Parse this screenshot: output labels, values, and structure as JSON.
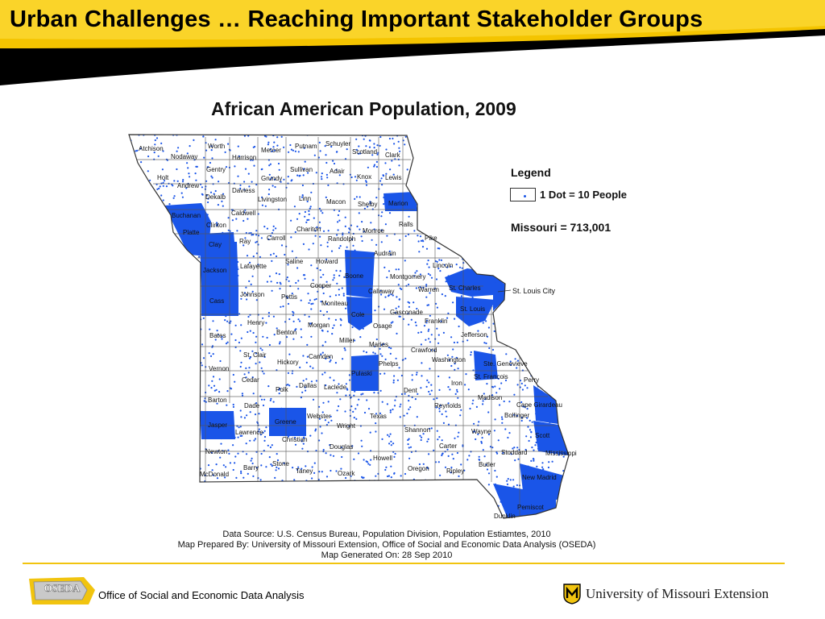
{
  "slide": {
    "title": "Urban Challenges … Reaching Important Stakeholder Groups"
  },
  "map": {
    "title": "African American Population, 2009",
    "legend_title": "Legend",
    "legend_entry": "1 Dot = 10 People",
    "total": "Missouri = 713,001",
    "st_louis_city": "St. Louis City",
    "dot_color": "#1a55e8",
    "counties": {
      "atchison": "Atchison",
      "nodaway": "Nodaway",
      "worth": "Worth",
      "harrison": "Harrison",
      "mercer": "Mercer",
      "putnam": "Putnam",
      "schuyler": "Schuyler",
      "scotland": "Scotland",
      "clark": "Clark",
      "holt": "Holt",
      "andrew": "Andrew",
      "gentry": "Gentry",
      "daviess": "Daviess",
      "grundy": "Grundy",
      "sullivan": "Sullivan",
      "adair": "Adair",
      "knox": "Knox",
      "lewis": "Lewis",
      "dekalb": "Dekalb",
      "livingston": "Livingston",
      "linn": "Linn",
      "macon": "Macon",
      "shelby": "Shelby",
      "marion": "Marion",
      "buchanan": "Buchanan",
      "clinton": "Clinton",
      "caldwell": "Caldwell",
      "ralls": "Ralls",
      "platte": "Platte",
      "clay": "Clay",
      "ray": "Ray",
      "carroll": "Carroll",
      "chariton": "Chariton",
      "randolph": "Randolph",
      "monroe": "Monroe",
      "pike": "Pike",
      "audrain": "Audrain",
      "lincoln": "Lincoln",
      "jackson": "Jackson",
      "lafayette": "Lafayette",
      "saline": "Saline",
      "howard": "Howard",
      "boone": "Boone",
      "montgomery": "Montgomery",
      "callaway": "Callaway",
      "warren": "Warren",
      "st_charles": "St. Charles",
      "cooper": "Cooper",
      "moniteau": "Moniteau",
      "cass": "Cass",
      "johnson": "Johnson",
      "pettis": "Pettis",
      "cole": "Cole",
      "gasconade": "Gasconade",
      "franklin": "Franklin",
      "st_louis": "St. Louis",
      "osage": "Osage",
      "henry": "Henry",
      "morgan": "Morgan",
      "benton": "Benton",
      "bates": "Bates",
      "miller": "Miller",
      "maries": "Maries",
      "jefferson": "Jefferson",
      "st_clair": "St. Clair",
      "camden": "Camden",
      "crawford": "Crawford",
      "hickory": "Hickory",
      "washington": "Washington",
      "ste_genevieve": "Ste. Genevieve",
      "vernon": "Vernon",
      "pulaski": "Pulaski",
      "phelps": "Phelps",
      "st_francois": "St. Francois",
      "perry": "Perry",
      "cedar": "Cedar",
      "polk": "Polk",
      "dallas": "Dallas",
      "laclede": "Laclede",
      "dent": "Dent",
      "iron": "Iron",
      "madison": "Madison",
      "barton": "Barton",
      "dade": "Dade",
      "reynolds": "Reynolds",
      "cape_girardeau": "Cape Girardeau",
      "bollinger": "Bollinger",
      "jasper": "Jasper",
      "greene": "Greene",
      "webster": "Webster",
      "wright": "Wright",
      "texas": "Texas",
      "shannon": "Shannon",
      "wayne": "Wayne",
      "scott": "Scott",
      "lawrence": "Lawrence",
      "christian": "Christian",
      "carter": "Carter",
      "douglas": "Douglas",
      "stoddard": "Stoddard",
      "mississippi": "Mississippi",
      "newton": "Newton",
      "howell": "Howell",
      "butler": "Butler",
      "barry": "Barry",
      "stone": "Stone",
      "taney": "Taney",
      "oregon": "Oregon",
      "ripley": "Ripley",
      "new_madrid": "New Madrid",
      "mcdonald": "McDonald",
      "ozark": "Ozark",
      "pemiscot": "Pemiscot",
      "dunklin": "Dunklin"
    }
  },
  "source": {
    "line1": "Data Source: U.S. Census Bureau, Population Division, Population Estiamtes, 2010",
    "line2": "Map Prepared By: University of Missouri Extension, Office of Social and Economic Data Analysis (OSEDA)",
    "line3": "Map Generated On: 28 Sep 2010"
  },
  "footer": {
    "oseda_logo_text": "OSEDA",
    "oseda_label": "Office of Social and Economic Data Analysis",
    "um_label": "University of Missouri Extension"
  },
  "colors": {
    "accent_yellow": "#f4c400",
    "banner_black": "#000000",
    "dot_blue": "#1a55e8",
    "footer_rule": "#f1c40f"
  }
}
